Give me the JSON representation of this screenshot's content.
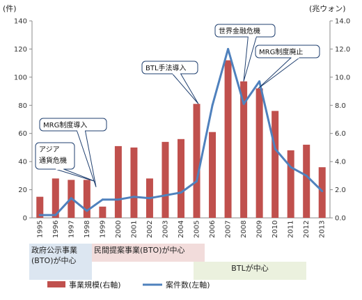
{
  "chart_data": {
    "type": "bar+line",
    "title": "",
    "y_left_label": "(件)",
    "y_right_label": "(兆ウォン)",
    "y_left_ticks": [
      "0",
      "20",
      "40",
      "60",
      "80",
      "100",
      "120",
      "140"
    ],
    "y_right_ticks": [
      "0.0",
      "2.0",
      "4.0",
      "6.0",
      "8.0",
      "10.0",
      "12.0",
      "14.0"
    ],
    "y_left_range": [
      0,
      140
    ],
    "y_right_range": [
      0,
      14
    ],
    "categories": [
      "1995",
      "1996",
      "1997",
      "1998",
      "1999",
      "2000",
      "2001",
      "2002",
      "2003",
      "2004",
      "2005",
      "2006",
      "2007",
      "2008",
      "2009",
      "2010",
      "2011",
      "2012",
      "2013"
    ],
    "series": [
      {
        "name": "事業規模(右軸)",
        "kind": "bar",
        "axis": "right",
        "color": "#c0504d",
        "values": [
          1.5,
          2.8,
          2.7,
          2.7,
          0.8,
          5.1,
          5.0,
          2.8,
          5.4,
          5.6,
          8.1,
          6.1,
          11.2,
          9.7,
          9.2,
          7.6,
          4.8,
          5.2,
          3.6
        ]
      },
      {
        "name": "案件数(左軸)",
        "kind": "line",
        "axis": "left",
        "color": "#4f81bd",
        "values": [
          2,
          2,
          14,
          5,
          13,
          13,
          15,
          14,
          16,
          18,
          26,
          80,
          120,
          81,
          97,
          49,
          36,
          30,
          19
        ]
      }
    ],
    "annotations": [
      {
        "lines": [
          "アジア",
          "通貨危機"
        ],
        "year": "1998"
      },
      {
        "lines": [
          "MRG制度導入"
        ],
        "year": "1999"
      },
      {
        "lines": [
          "BTL手法導入"
        ],
        "year": "2005"
      },
      {
        "lines": [
          "世界金融危機"
        ],
        "year": "2008"
      },
      {
        "lines": [
          "MRG制度廃止"
        ],
        "year": "2009"
      }
    ],
    "periods": [
      {
        "lines": [
          "政府公示事業",
          "(BTO)が中心"
        ],
        "color": "#dce6f1"
      },
      {
        "lines": [
          "民間提案事業(BTO)が中心"
        ],
        "color": "#f2dcdb"
      },
      {
        "lines": [
          "BTLが中心"
        ],
        "color": "#ebf1de"
      }
    ],
    "legend_position": "bottom",
    "grid": false
  }
}
